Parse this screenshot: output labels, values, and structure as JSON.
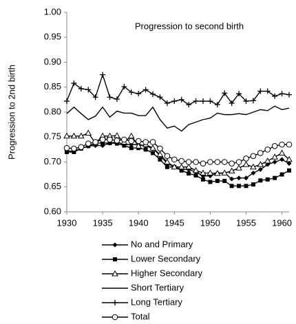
{
  "chart_data": {
    "type": "line",
    "annotation": "Progression to second birth",
    "y_label": "Progression to 2nd birth",
    "x": [
      1930,
      1931,
      1932,
      1933,
      1934,
      1935,
      1936,
      1937,
      1938,
      1939,
      1940,
      1941,
      1942,
      1943,
      1944,
      1945,
      1946,
      1947,
      1948,
      1949,
      1950,
      1951,
      1952,
      1953,
      1954,
      1955,
      1956,
      1957,
      1958,
      1959,
      1960,
      1961
    ],
    "xlim": [
      1930,
      1961
    ],
    "xticks": [
      1930,
      1935,
      1940,
      1945,
      1950,
      1955,
      1960
    ],
    "ylim": [
      0.6,
      1.0
    ],
    "yticks": [
      {
        "value": 0.6,
        "label": "0.60"
      },
      0.65,
      {
        "value": 0.7,
        "label": "0.70"
      },
      0.75,
      {
        "value": 0.8,
        "label": "0.80"
      },
      0.85,
      {
        "value": 0.9,
        "label": "0.90"
      },
      0.95,
      {
        "value": 1.0,
        "label": "1.00"
      }
    ],
    "series": [
      {
        "name": "No and Primary",
        "color": "#000000",
        "marker": "diamond",
        "values": [
          0.722,
          0.722,
          0.727,
          0.732,
          0.733,
          0.733,
          0.738,
          0.74,
          0.735,
          0.735,
          0.735,
          0.732,
          0.727,
          0.713,
          0.697,
          0.69,
          0.685,
          0.685,
          0.68,
          0.672,
          0.672,
          0.678,
          0.678,
          0.666,
          0.668,
          0.668,
          0.678,
          0.685,
          0.695,
          0.7,
          0.705,
          0.697
        ]
      },
      {
        "name": "Lower Secondary",
        "color": "#000000",
        "marker": "square",
        "values": [
          0.72,
          0.72,
          0.727,
          0.732,
          0.738,
          0.738,
          0.738,
          0.737,
          0.733,
          0.728,
          0.728,
          0.725,
          0.718,
          0.705,
          0.69,
          0.69,
          0.683,
          0.677,
          0.673,
          0.665,
          0.66,
          0.662,
          0.662,
          0.652,
          0.652,
          0.652,
          0.655,
          0.663,
          0.665,
          0.668,
          0.675,
          0.683
        ]
      },
      {
        "name": "Higher Secondary",
        "color": "#000000",
        "marker": "triangle",
        "values": [
          0.752,
          0.752,
          0.752,
          0.758,
          0.738,
          0.752,
          0.752,
          0.753,
          0.74,
          0.752,
          0.732,
          0.735,
          0.728,
          0.715,
          0.7,
          0.69,
          0.69,
          0.69,
          0.683,
          0.678,
          0.678,
          0.677,
          0.678,
          0.682,
          0.688,
          0.695,
          0.69,
          0.695,
          0.702,
          0.71,
          0.718,
          0.705
        ]
      },
      {
        "name": "Short Tertiary",
        "color": "#000000",
        "marker": "none",
        "values": [
          0.797,
          0.81,
          0.797,
          0.785,
          0.792,
          0.81,
          0.79,
          0.802,
          0.798,
          0.798,
          0.793,
          0.793,
          0.81,
          0.785,
          0.768,
          0.772,
          0.762,
          0.775,
          0.78,
          0.785,
          0.788,
          0.798,
          0.795,
          0.795,
          0.797,
          0.795,
          0.8,
          0.805,
          0.803,
          0.812,
          0.805,
          0.808
        ]
      },
      {
        "name": "Long Tertiary",
        "color": "#000000",
        "marker": "plus",
        "values": [
          0.822,
          0.858,
          0.847,
          0.845,
          0.83,
          0.875,
          0.83,
          0.826,
          0.851,
          0.84,
          0.837,
          0.845,
          0.836,
          0.83,
          0.818,
          0.822,
          0.825,
          0.815,
          0.822,
          0.822,
          0.822,
          0.815,
          0.838,
          0.818,
          0.837,
          0.822,
          0.823,
          0.842,
          0.842,
          0.832,
          0.837,
          0.835
        ]
      },
      {
        "name": "Total",
        "color": "#000000",
        "marker": "circle",
        "values": [
          0.728,
          0.727,
          0.73,
          0.737,
          0.74,
          0.745,
          0.745,
          0.743,
          0.745,
          0.742,
          0.742,
          0.74,
          0.74,
          0.727,
          0.712,
          0.705,
          0.702,
          0.7,
          0.7,
          0.697,
          0.7,
          0.7,
          0.7,
          0.697,
          0.7,
          0.707,
          0.712,
          0.718,
          0.725,
          0.732,
          0.735,
          0.735
        ]
      }
    ]
  }
}
